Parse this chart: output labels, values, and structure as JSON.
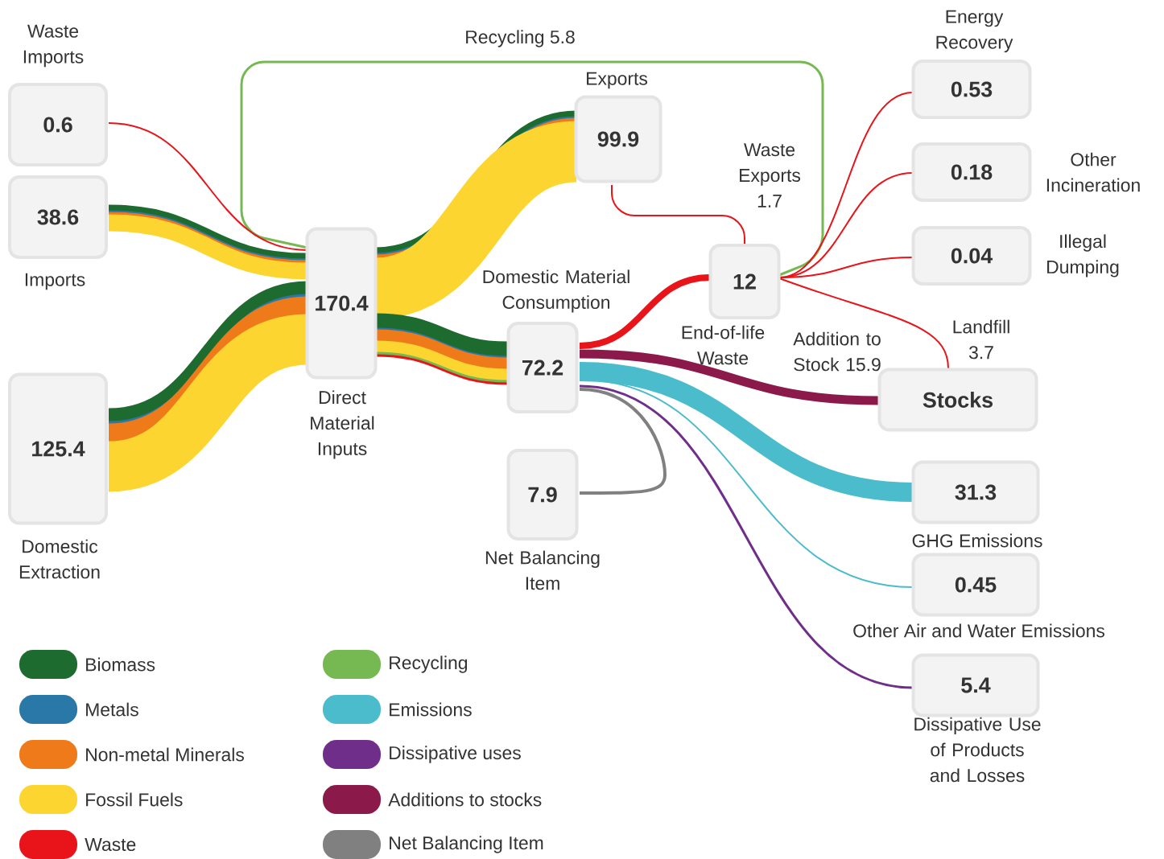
{
  "chart_data": {
    "type": "other",
    "categories": [
      "Waste Imports",
      "Imports",
      "Domestic Extraction",
      "Direct Material Inputs",
      "Exports",
      "Domestic Material Consumption",
      "Net Balancing Item",
      "End-of-life Waste",
      "Stocks",
      "Energy Recovery",
      "Other Incineration",
      "Illegal Dumping",
      "GHG Emissions",
      "Other Air and Water Emissions",
      "Dissipative Use of Products and Losses"
    ],
    "values": [
      0.6,
      38.6,
      125.4,
      170.4,
      99.9,
      72.2,
      7.9,
      12,
      null,
      0.53,
      0.18,
      0.04,
      31.3,
      0.45,
      5.4
    ],
    "data_labels": true,
    "annotations": [
      "Recycling 5.8",
      "Waste Exports 1.7",
      "Landfill 3.7",
      "Addition to Stock 15.9"
    ],
    "series": [
      {
        "name": "Biomass",
        "color": "#1e6b30",
        "values": [
          null,
          null,
          null,
          null,
          null,
          null,
          null,
          null,
          null,
          null,
          null,
          null,
          null,
          null,
          null
        ]
      },
      {
        "name": "Metals",
        "color": "#2a78a8",
        "values": [
          null,
          null,
          null,
          null,
          null,
          null,
          null,
          null,
          null,
          null,
          null,
          null,
          null,
          null,
          null
        ]
      },
      {
        "name": "Non-metal Minerals",
        "color": "#ee7a1a",
        "values": [
          null,
          null,
          null,
          null,
          null,
          null,
          null,
          null,
          null,
          null,
          null,
          null,
          null,
          null,
          null
        ]
      },
      {
        "name": "Fossil Fuels",
        "color": "#fdd530",
        "values": [
          null,
          null,
          null,
          null,
          null,
          null,
          null,
          null,
          null,
          null,
          null,
          null,
          null,
          null,
          null
        ]
      },
      {
        "name": "Waste",
        "color": "#e8141a",
        "values": [
          null,
          null,
          null,
          null,
          null,
          null,
          null,
          null,
          null,
          null,
          null,
          null,
          null,
          null,
          null
        ]
      },
      {
        "name": "Recycling",
        "color": "#76b852",
        "values": [
          null,
          null,
          null,
          null,
          null,
          null,
          null,
          null,
          null,
          null,
          null,
          null,
          null,
          null,
          null
        ]
      },
      {
        "name": "Emissions",
        "color": "#4bbccc",
        "values": [
          null,
          null,
          null,
          null,
          null,
          null,
          null,
          null,
          null,
          null,
          null,
          null,
          null,
          null,
          null
        ]
      },
      {
        "name": "Dissipative uses",
        "color": "#6f2e8a",
        "values": [
          null,
          null,
          null,
          null,
          null,
          null,
          null,
          null,
          null,
          null,
          null,
          null,
          null,
          null,
          null
        ]
      },
      {
        "name": "Additions to stocks",
        "color": "#8b1a4a",
        "values": [
          null,
          null,
          null,
          null,
          null,
          null,
          null,
          null,
          null,
          null,
          null,
          null,
          null,
          null,
          null
        ]
      },
      {
        "name": "Net Balancing Item",
        "color": "#808080",
        "values": [
          null,
          null,
          null,
          null,
          null,
          null,
          null,
          null,
          null,
          null,
          null,
          null,
          null,
          null,
          null
        ]
      }
    ],
    "legend": "bottom left"
  }
}
